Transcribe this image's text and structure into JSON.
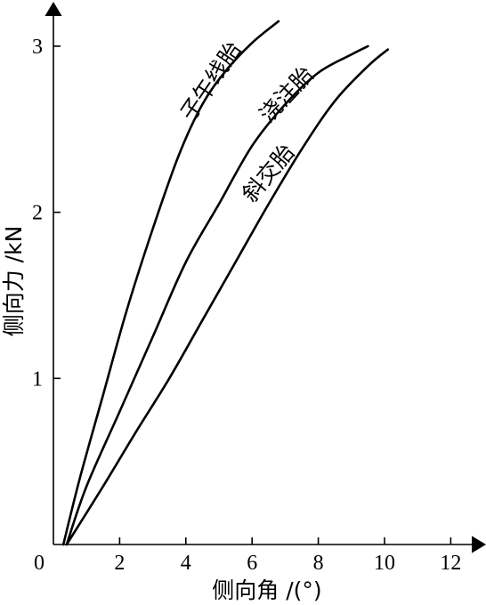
{
  "chart_data": {
    "type": "line",
    "xlabel": "侧向角 /(°)",
    "ylabel": "侧向力 /kN",
    "xlim": [
      0,
      13
    ],
    "ylim": [
      0,
      3.2
    ],
    "x_ticks": [
      0,
      2,
      4,
      6,
      8,
      10,
      12
    ],
    "y_ticks": [
      1,
      2,
      3
    ],
    "x_tick_labels": [
      "0",
      "2",
      "4",
      "6",
      "8",
      "10",
      "12"
    ],
    "y_tick_labels": [
      "1",
      "2",
      "3"
    ],
    "grid": false,
    "series": [
      {
        "name": "子午线胎",
        "x": [
          0.3,
          0.8,
          1.5,
          2.2,
          3.0,
          3.8,
          4.5,
          5.2,
          6.0,
          6.8
        ],
        "y": [
          0.0,
          0.4,
          0.9,
          1.4,
          1.9,
          2.35,
          2.65,
          2.85,
          3.02,
          3.15
        ]
      },
      {
        "name": "浇注胎",
        "x": [
          0.4,
          1.0,
          2.0,
          3.0,
          4.0,
          5.0,
          6.0,
          7.0,
          8.0,
          9.0,
          9.5
        ],
        "y": [
          0.0,
          0.35,
          0.8,
          1.25,
          1.7,
          2.05,
          2.4,
          2.65,
          2.84,
          2.95,
          3.0
        ]
      },
      {
        "name": "斜交胎",
        "x": [
          0.4,
          1.5,
          2.5,
          3.5,
          4.5,
          5.5,
          6.5,
          7.5,
          8.5,
          9.5,
          10.1
        ],
        "y": [
          0.0,
          0.35,
          0.68,
          1.0,
          1.35,
          1.7,
          2.05,
          2.38,
          2.67,
          2.88,
          2.98
        ]
      }
    ]
  }
}
